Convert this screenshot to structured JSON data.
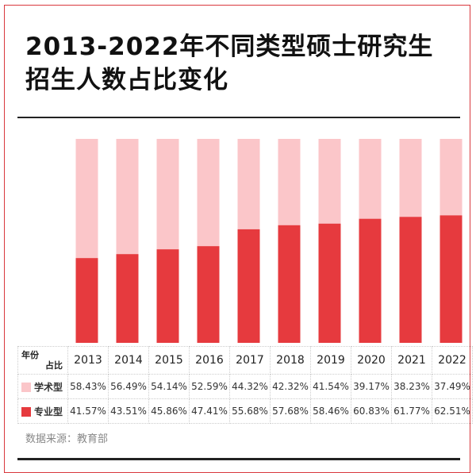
{
  "title_line1": "2013-2022年不同类型硕士研究生",
  "title_line2": "招生人数占比变化",
  "chart_data": {
    "type": "bar",
    "stacked": true,
    "categories": [
      "2013",
      "2014",
      "2015",
      "2016",
      "2017",
      "2018",
      "2019",
      "2020",
      "2021",
      "2022"
    ],
    "series": [
      {
        "name": "专业型",
        "color": "#e63a3e",
        "values": [
          41.57,
          43.51,
          45.86,
          47.41,
          55.68,
          57.68,
          58.46,
          60.83,
          61.77,
          62.51
        ],
        "labels": [
          "41.57%",
          "43.51%",
          "45.86%",
          "47.41%",
          "55.68%",
          "57.68%",
          "58.46%",
          "60.83%",
          "61.77%",
          "62.51%"
        ]
      },
      {
        "name": "学术型",
        "color": "#fbc6c9",
        "values": [
          58.43,
          56.49,
          54.14,
          52.59,
          44.32,
          42.32,
          41.54,
          39.17,
          38.23,
          37.49
        ],
        "labels": [
          "58.43%",
          "56.49%",
          "54.14%",
          "52.59%",
          "44.32%",
          "42.32%",
          "41.54%",
          "39.17%",
          "38.23%",
          "37.49%"
        ]
      }
    ],
    "ylim": [
      0,
      100
    ],
    "table_header_top": "年份",
    "table_header_bottom": "占比"
  },
  "source": "数据来源：教育部"
}
